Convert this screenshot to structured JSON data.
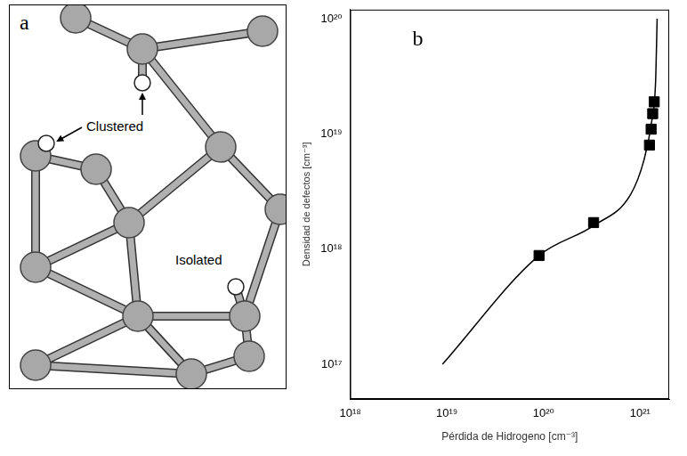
{
  "diagram": {
    "panel": "a",
    "labels": {
      "clustered": "Clustered",
      "isolated": "Isolated"
    }
  },
  "chart_data": {
    "panel": "b",
    "type": "scatter",
    "x_label": "Pérdida de Hidrogeno [cm⁻³]",
    "y_label": "Densidad de defectos [cm⁻³]",
    "log": true,
    "grid": false,
    "xlim": [
      1e+18,
      2e+21
    ],
    "ylim": [
      5e+16,
      1.2e+20
    ],
    "xticks": [
      {
        "value": 1e+18,
        "label": "10¹⁸"
      },
      {
        "value": 1e+19,
        "label": "10¹⁹"
      },
      {
        "value": 1e+20,
        "label": "10²⁰"
      },
      {
        "value": 1e+21,
        "label": "10²¹"
      }
    ],
    "yticks": [
      {
        "value": 1e+17,
        "label": "10¹⁷"
      },
      {
        "value": 1e+18,
        "label": "10¹⁸"
      },
      {
        "value": 1e+19,
        "label": "10¹⁹"
      },
      {
        "value": 1e+20,
        "label": "10²⁰"
      }
    ],
    "series": [
      {
        "type": "line",
        "color": "#000000",
        "x": [
          9e+18,
          9e+19,
          3.3e+20,
          8e+20,
          1.1e+21,
          1.3e+21,
          1.45e+21,
          1.5e+21
        ],
        "values": [
          1e+17,
          8.8e+17,
          1.6e+18,
          3e+18,
          6e+18,
          1.2e+19,
          3e+19,
          1e+20
        ]
      },
      {
        "type": "scatter",
        "marker": "square",
        "color": "#000000",
        "x": [
          9e+19,
          3.3e+20,
          1.25e+21,
          1.3e+21,
          1.35e+21,
          1.4e+21
        ],
        "values": [
          8.8e+17,
          1.7e+18,
          8e+18,
          1.1e+19,
          1.5e+19,
          1.9e+19
        ]
      }
    ]
  }
}
